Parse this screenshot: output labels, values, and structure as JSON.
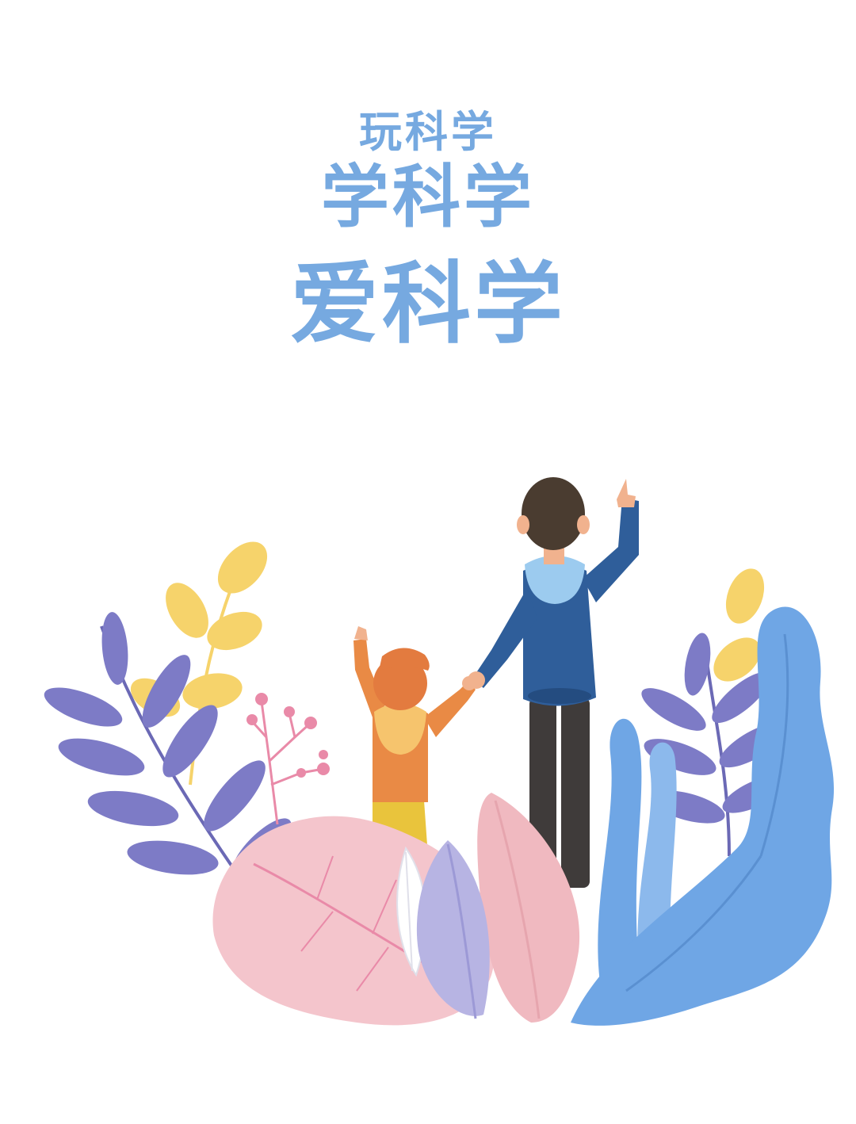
{
  "headline": {
    "line1": "玩科学",
    "line2": "学科学",
    "line3": "爱科学"
  },
  "colors": {
    "background": "#ffffff",
    "title": "#76a9e0",
    "leaf_purple": "#7d7bc6",
    "leaf_yellow": "#f6d36b",
    "leaf_pink": "#f4c5cc",
    "leaf_blue": "#6fa6e5",
    "leaf_lilac": "#b7b4e3",
    "berry": "#e98aa8",
    "adult_hoodie": "#2f5e9a",
    "adult_hood": "#9ccbef",
    "adult_hair": "#4a3c30",
    "adult_pants": "#3f3b3a",
    "child_shirt": "#e98a45",
    "child_hood": "#f6c46d",
    "child_cap": "#e37b3f",
    "child_pants": "#e9c43c"
  },
  "illustration": {
    "figures": [
      "adult-pointing-up",
      "child-pointing-up"
    ],
    "decoration": [
      "purple-leaf-branch",
      "yellow-leaf-branch",
      "pink-berry-sprig",
      "pink-leaf",
      "lilac-leaf",
      "white-leaf",
      "blue-wave-leaves"
    ]
  }
}
